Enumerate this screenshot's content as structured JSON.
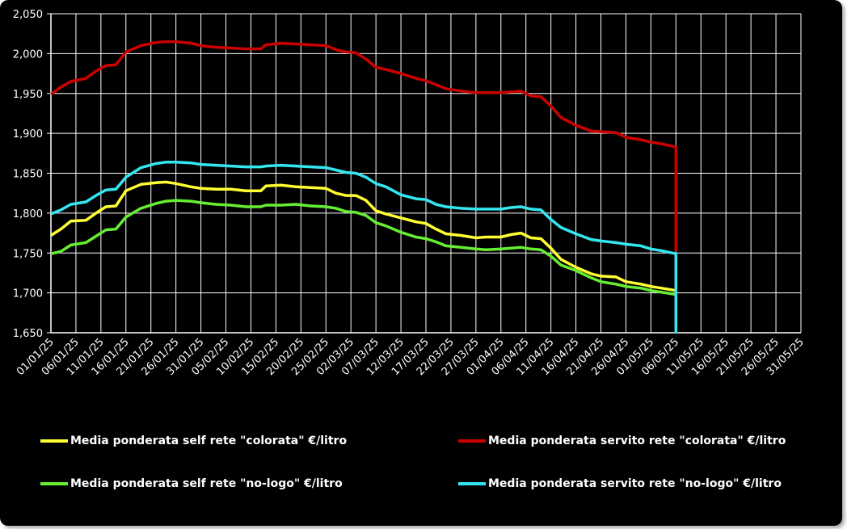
{
  "chart_data": {
    "type": "line",
    "title": "",
    "xlabel": "",
    "ylabel": "",
    "ylim": [
      1.65,
      2.05
    ],
    "y_ticks": [
      "1,650",
      "1,700",
      "1,750",
      "1,800",
      "1,850",
      "1,900",
      "1,950",
      "2,000",
      "2,050"
    ],
    "x_ticks": [
      "01/01/25",
      "06/01/25",
      "11/01/25",
      "16/01/25",
      "21/01/25",
      "26/01/25",
      "31/01/25",
      "05/02/25",
      "10/02/25",
      "15/02/25",
      "20/02/25",
      "25/02/25",
      "02/03/25",
      "07/03/25",
      "12/03/25",
      "17/03/25",
      "22/03/25",
      "27/03/25",
      "01/04/25",
      "06/04/25",
      "11/04/25",
      "16/04/25",
      "21/04/25",
      "26/04/25",
      "01/05/25",
      "06/05/25",
      "11/05/25",
      "16/05/25",
      "21/05/25",
      "26/05/25",
      "31/05/25"
    ],
    "x_range": [
      "01/01/25",
      "31/05/25"
    ],
    "grid": true,
    "legend_position": "bottom",
    "series": [
      {
        "name": "Media ponderata self rete \"colorata\" €/litro",
        "color": "#ffff33",
        "x": [
          "01/01/25",
          "03/01/25",
          "05/01/25",
          "08/01/25",
          "10/01/25",
          "12/01/25",
          "14/01/25",
          "16/01/25",
          "19/01/25",
          "22/01/25",
          "24/01/25",
          "26/01/25",
          "29/01/25",
          "31/01/25",
          "03/02/25",
          "06/02/25",
          "09/02/25",
          "12/02/25",
          "13/02/25",
          "16/02/25",
          "19/02/25",
          "22/02/25",
          "25/02/25",
          "27/02/25",
          "01/03/25",
          "03/03/25",
          "05/03/25",
          "07/03/25",
          "09/03/25",
          "12/03/25",
          "15/03/25",
          "17/03/25",
          "19/03/25",
          "21/03/25",
          "24/03/25",
          "27/03/25",
          "29/03/25",
          "01/04/25",
          "03/04/25",
          "05/04/25",
          "07/04/25",
          "09/04/25",
          "11/04/25",
          "13/04/25",
          "16/04/25",
          "19/04/25",
          "21/04/25",
          "24/04/25",
          "26/04/25",
          "29/04/25",
          "01/05/25",
          "03/05/25",
          "06/05/25"
        ],
        "y": [
          1.772,
          1.78,
          1.79,
          1.791,
          1.8,
          1.808,
          1.809,
          1.828,
          1.836,
          1.838,
          1.839,
          1.837,
          1.833,
          1.831,
          1.83,
          1.83,
          1.828,
          1.828,
          1.834,
          1.835,
          1.833,
          1.832,
          1.831,
          1.825,
          1.822,
          1.822,
          1.816,
          1.803,
          1.799,
          1.794,
          1.789,
          1.787,
          1.78,
          1.774,
          1.772,
          1.769,
          1.77,
          1.77,
          1.773,
          1.775,
          1.769,
          1.768,
          1.756,
          1.742,
          1.732,
          1.724,
          1.721,
          1.72,
          1.714,
          1.711,
          1.708,
          1.706,
          1.703
        ]
      },
      {
        "name": "Media ponderata servito rete \"colorata\" €/litro",
        "color": "#cc0000",
        "x": [
          "01/01/25",
          "03/01/25",
          "05/01/25",
          "08/01/25",
          "10/01/25",
          "12/01/25",
          "14/01/25",
          "16/01/25",
          "19/01/25",
          "22/01/25",
          "24/01/25",
          "26/01/25",
          "29/01/25",
          "31/01/25",
          "03/02/25",
          "06/02/25",
          "09/02/25",
          "12/02/25",
          "13/02/25",
          "16/02/25",
          "19/02/25",
          "22/02/25",
          "25/02/25",
          "27/02/25",
          "01/03/25",
          "03/03/25",
          "05/03/25",
          "07/03/25",
          "09/03/25",
          "12/03/25",
          "15/03/25",
          "17/03/25",
          "19/03/25",
          "21/03/25",
          "24/03/25",
          "27/03/25",
          "29/03/25",
          "01/04/25",
          "03/04/25",
          "05/04/25",
          "07/04/25",
          "09/04/25",
          "11/04/25",
          "13/04/25",
          "16/04/25",
          "19/04/25",
          "21/04/25",
          "24/04/25",
          "26/04/25",
          "29/04/25",
          "01/05/25",
          "03/05/25",
          "06/05/25",
          "06/05/25"
        ],
        "y": [
          1.949,
          1.958,
          1.965,
          1.969,
          1.978,
          1.985,
          1.986,
          2.002,
          2.01,
          2.014,
          2.015,
          2.015,
          2.013,
          2.01,
          2.008,
          2.007,
          2.006,
          2.006,
          2.011,
          2.013,
          2.012,
          2.011,
          2.01,
          2.005,
          2.002,
          2.001,
          1.993,
          1.983,
          1.98,
          1.975,
          1.969,
          1.966,
          1.961,
          1.956,
          1.953,
          1.951,
          1.951,
          1.951,
          1.952,
          1.953,
          1.947,
          1.946,
          1.934,
          1.92,
          1.91,
          1.903,
          1.902,
          1.901,
          1.895,
          1.892,
          1.889,
          1.887,
          1.883,
          1.752
        ]
      },
      {
        "name": "Media ponderata self rete \"no-logo\" €/litro",
        "color": "#66ee33",
        "x": [
          "01/01/25",
          "03/01/25",
          "05/01/25",
          "08/01/25",
          "10/01/25",
          "12/01/25",
          "14/01/25",
          "16/01/25",
          "19/01/25",
          "22/01/25",
          "24/01/25",
          "26/01/25",
          "29/01/25",
          "31/01/25",
          "03/02/25",
          "06/02/25",
          "09/02/25",
          "12/02/25",
          "13/02/25",
          "16/02/25",
          "19/02/25",
          "22/02/25",
          "25/02/25",
          "27/02/25",
          "01/03/25",
          "03/03/25",
          "05/03/25",
          "07/03/25",
          "09/03/25",
          "12/03/25",
          "15/03/25",
          "17/03/25",
          "19/03/25",
          "21/03/25",
          "24/03/25",
          "27/03/25",
          "29/03/25",
          "01/04/25",
          "03/04/25",
          "05/04/25",
          "07/04/25",
          "09/04/25",
          "11/04/25",
          "13/04/25",
          "16/04/25",
          "19/04/25",
          "21/04/25",
          "24/04/25",
          "26/04/25",
          "29/04/25",
          "01/05/25",
          "03/05/25",
          "06/05/25"
        ],
        "y": [
          1.749,
          1.752,
          1.76,
          1.763,
          1.771,
          1.779,
          1.78,
          1.795,
          1.806,
          1.812,
          1.815,
          1.816,
          1.815,
          1.813,
          1.811,
          1.81,
          1.808,
          1.808,
          1.81,
          1.81,
          1.811,
          1.809,
          1.808,
          1.806,
          1.802,
          1.801,
          1.797,
          1.788,
          1.784,
          1.776,
          1.77,
          1.768,
          1.764,
          1.759,
          1.757,
          1.755,
          1.754,
          1.755,
          1.756,
          1.757,
          1.755,
          1.754,
          1.746,
          1.735,
          1.728,
          1.719,
          1.714,
          1.711,
          1.708,
          1.706,
          1.703,
          1.701,
          1.698
        ]
      },
      {
        "name": "Media ponderata servito rete \"no-logo\" €/litro",
        "color": "#33e6f0",
        "x": [
          "01/01/25",
          "03/01/25",
          "05/01/25",
          "08/01/25",
          "10/01/25",
          "12/01/25",
          "14/01/25",
          "16/01/25",
          "19/01/25",
          "22/01/25",
          "24/01/25",
          "26/01/25",
          "29/01/25",
          "31/01/25",
          "03/02/25",
          "06/02/25",
          "09/02/25",
          "12/02/25",
          "13/02/25",
          "16/02/25",
          "19/02/25",
          "22/02/25",
          "25/02/25",
          "27/02/25",
          "01/03/25",
          "03/03/25",
          "05/03/25",
          "07/03/25",
          "09/03/25",
          "12/03/25",
          "15/03/25",
          "17/03/25",
          "19/03/25",
          "21/03/25",
          "24/03/25",
          "27/03/25",
          "29/03/25",
          "01/04/25",
          "03/04/25",
          "05/04/25",
          "07/04/25",
          "09/04/25",
          "11/04/25",
          "13/04/25",
          "16/04/25",
          "19/04/25",
          "21/04/25",
          "24/04/25",
          "26/04/25",
          "29/04/25",
          "01/05/25",
          "03/05/25",
          "06/05/25",
          "06/05/25"
        ],
        "y": [
          1.799,
          1.804,
          1.811,
          1.814,
          1.822,
          1.829,
          1.83,
          1.845,
          1.857,
          1.862,
          1.864,
          1.864,
          1.863,
          1.861,
          1.86,
          1.859,
          1.858,
          1.858,
          1.859,
          1.86,
          1.859,
          1.858,
          1.857,
          1.854,
          1.851,
          1.85,
          1.845,
          1.837,
          1.833,
          1.823,
          1.818,
          1.817,
          1.811,
          1.808,
          1.806,
          1.805,
          1.805,
          1.805,
          1.807,
          1.808,
          1.805,
          1.804,
          1.792,
          1.782,
          1.774,
          1.767,
          1.765,
          1.763,
          1.761,
          1.759,
          1.755,
          1.753,
          1.749,
          1.649
        ]
      }
    ]
  }
}
